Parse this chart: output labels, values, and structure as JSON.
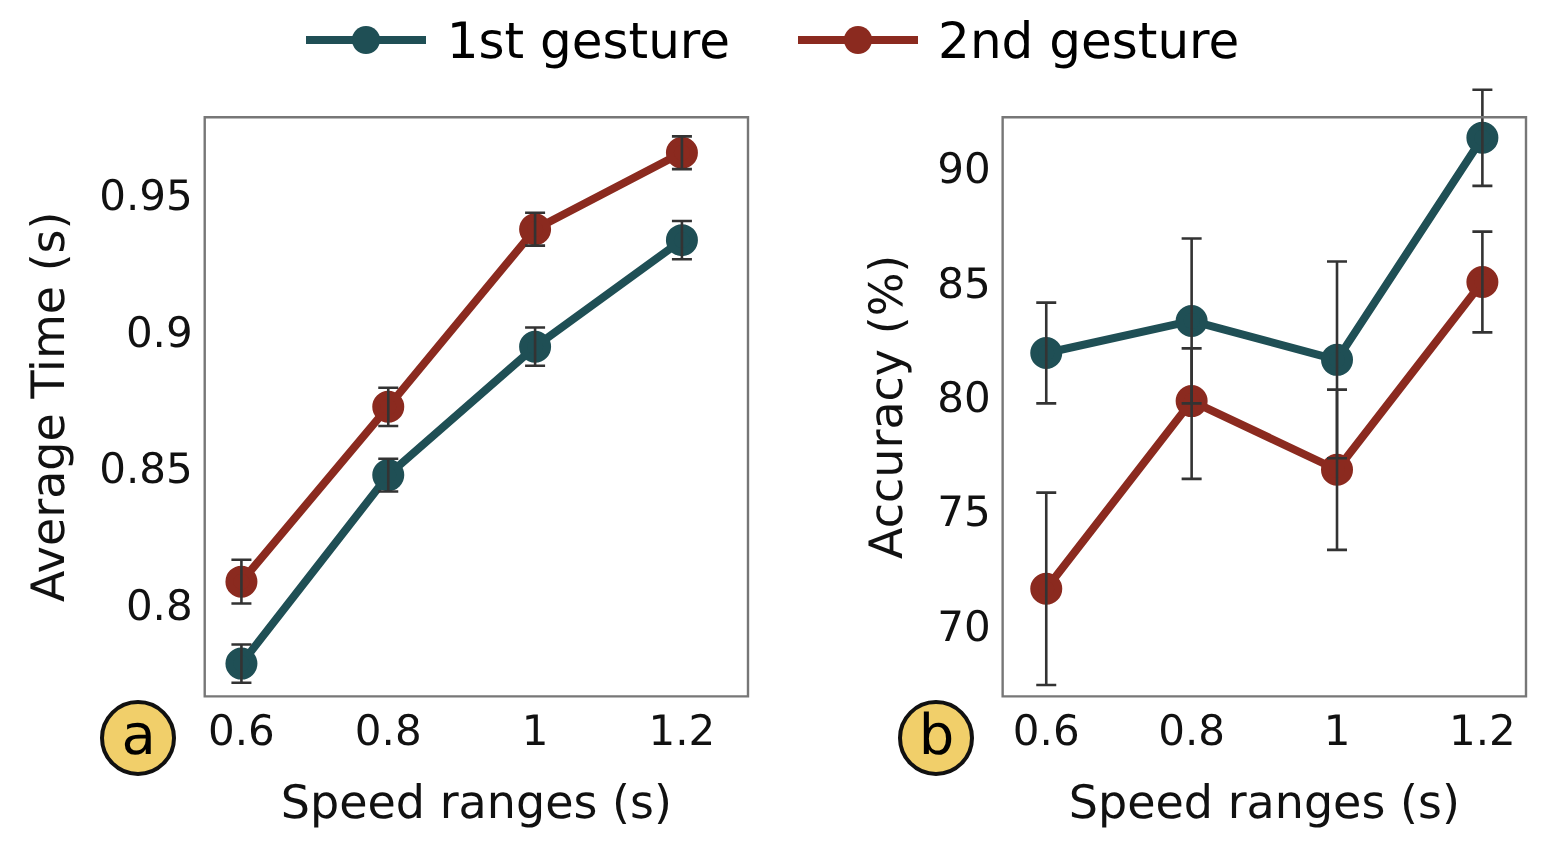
{
  "chart_data": [
    {
      "type": "line",
      "xlabel": "Speed ranges (s)",
      "ylabel": "Average Time (s)",
      "annotations": [
        "a"
      ],
      "legend": "top",
      "marker": "circle",
      "x": [
        0.6,
        0.8,
        1,
        1.2
      ],
      "xlim": [
        0.55,
        1.29
      ],
      "xticks": [
        0.6,
        0.8,
        1,
        1.2
      ],
      "ylim": [
        0.768,
        0.98
      ],
      "yticks": [
        0.8,
        0.85,
        0.9,
        0.95
      ],
      "grid": false,
      "series": [
        {
          "name": "1st gesture",
          "color": "#1f4f55",
          "values": [
            0.78,
            0.849,
            0.896,
            0.935
          ],
          "errors": [
            0.007,
            0.006,
            0.007,
            0.007
          ]
        },
        {
          "name": "2nd gesture",
          "color": "#8b2a1f",
          "values": [
            0.81,
            0.874,
            0.939,
            0.967
          ],
          "errors": [
            0.008,
            0.007,
            0.006,
            0.006
          ]
        }
      ]
    },
    {
      "type": "line",
      "xlabel": "Speed ranges (s)",
      "ylabel": "Accuracy (%)",
      "annotations": [
        "b"
      ],
      "marker": "circle",
      "x": [
        0.6,
        0.8,
        1,
        1.2
      ],
      "xlim": [
        0.54,
        1.26
      ],
      "xticks": [
        0.6,
        0.8,
        1,
        1.2
      ],
      "ylim": [
        67.1,
        92.4
      ],
      "yticks": [
        70,
        75,
        80,
        85,
        90
      ],
      "grid": false,
      "series": [
        {
          "color": "#1f4f55",
          "values": [
            82.1,
            83.5,
            81.8,
            91.5
          ],
          "errors": [
            2.2,
            3.6,
            4.3,
            2.1
          ]
        },
        {
          "color": "#8b2a1f",
          "values": [
            71.8,
            80,
            77,
            85.2
          ],
          "errors": [
            4.2,
            [
              76.6,
              82.3
            ],
            3.5,
            2.2
          ]
        }
      ]
    }
  ]
}
